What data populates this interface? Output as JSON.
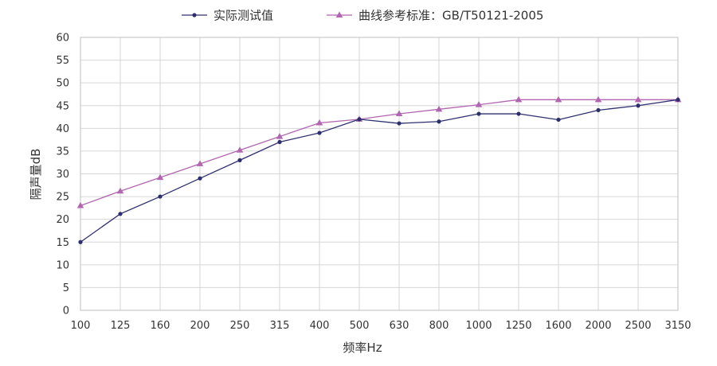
{
  "chart_data": {
    "type": "line",
    "categories": [
      "100",
      "125",
      "160",
      "200",
      "250",
      "315",
      "400",
      "500",
      "630",
      "800",
      "1000",
      "1250",
      "1600",
      "2000",
      "2500",
      "3150"
    ],
    "xlabel": "频率Hz",
    "ylabel": "隔声量dB",
    "ylim": [
      0,
      60
    ],
    "yticks": [
      "0",
      "5",
      "10",
      "15",
      "20",
      "25",
      "30",
      "35",
      "40",
      "45",
      "50",
      "55",
      "60"
    ],
    "grid": true,
    "legend_position": "top-center",
    "series": [
      {
        "name": "实际测试值",
        "color": "#2e2f6e",
        "marker": "circle",
        "values": [
          15,
          21.2,
          25,
          29,
          33,
          37,
          39,
          42,
          41.1,
          41.5,
          43.2,
          43.2,
          41.9,
          44,
          45,
          46.3
        ]
      },
      {
        "name": "曲线参考标准：GB/T50121-2005",
        "color": "#b265b0",
        "marker": "triangle",
        "values": [
          23,
          26.2,
          29.2,
          32.2,
          35.2,
          38.2,
          41.2,
          42,
          43.2,
          44.2,
          45.2,
          46.3,
          46.3,
          46.3,
          46.3,
          46.3
        ]
      }
    ]
  }
}
